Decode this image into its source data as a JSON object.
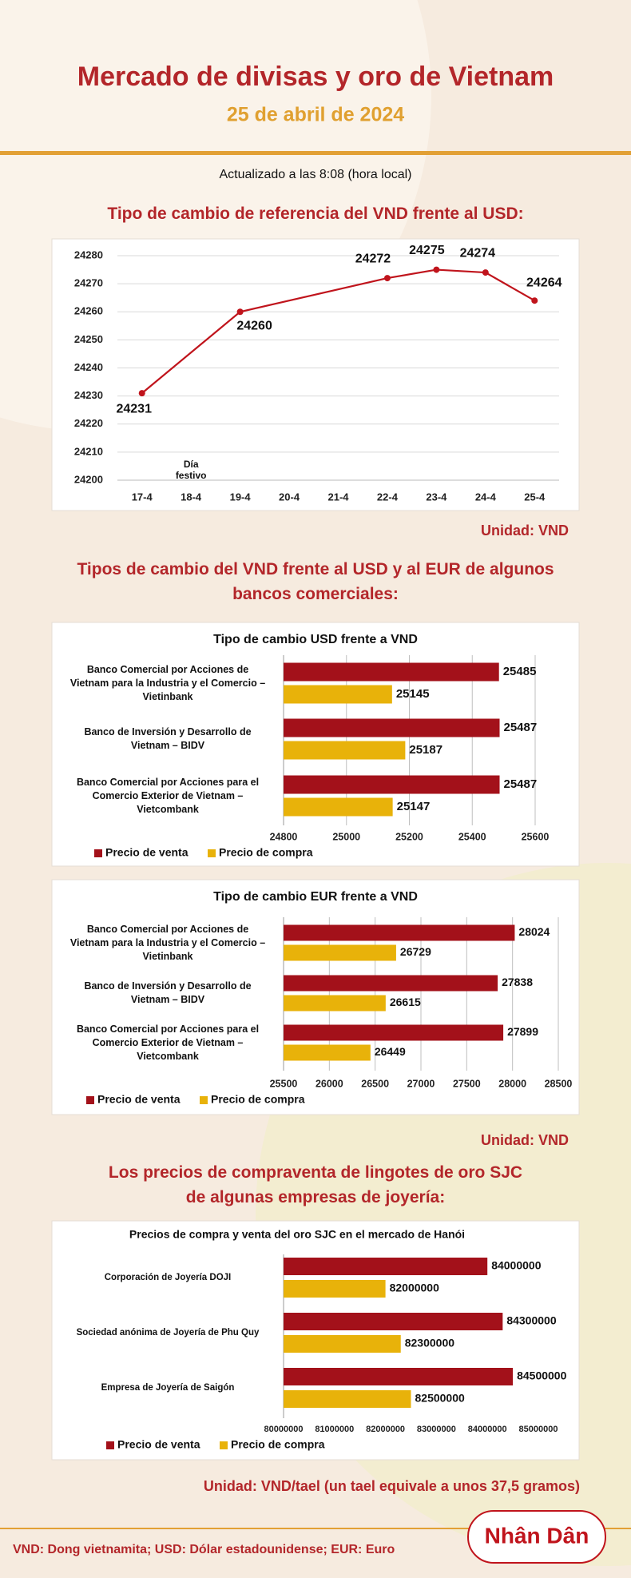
{
  "header": {
    "title": "Mercado de divisas y oro de Vietnam",
    "date": "25 de abril de 2024",
    "updated": "Actualizado a las 8:08 (hora local)"
  },
  "sections": [
    {
      "title": "Tipo de cambio de referencia del VND frente al USD:",
      "unit": "Unidad: VND"
    },
    {
      "title": "Tipos de cambio del VND frente al USD y al EUR de algunos bancos comerciales:",
      "unit": "Unidad: VND"
    },
    {
      "title": "Los precios de compraventa de lingotes de oro SJC de algunas empresas de joyería:",
      "unit": "Unidad: VND/tael (un tael equivale a unos 37,5 gramos)"
    }
  ],
  "footer": "VND: Dong vietnamita; USD: Dólar estadounidense; EUR: Euro",
  "logo": "Nhân Dân",
  "chart_data": [
    {
      "type": "line",
      "categories": [
        "17-4",
        "18-4",
        "19-4",
        "20-4",
        "21-4",
        "22-4",
        "23-4",
        "24-4",
        "25-4"
      ],
      "x": [
        "17-4",
        "19-4",
        "22-4",
        "23-4",
        "24-4",
        "25-4"
      ],
      "values": [
        24231,
        24260,
        24272,
        24275,
        24274,
        24264
      ],
      "color": "#c0141c",
      "ylim": [
        24200,
        24280
      ],
      "yticks": [
        24200,
        24210,
        24220,
        24230,
        24240,
        24250,
        24260,
        24270,
        24280
      ],
      "grid": true,
      "annotations": [
        {
          "text": "Día festivo",
          "x": "18-4"
        }
      ]
    },
    {
      "type": "bar",
      "orientation": "horizontal",
      "title": "Tipo de cambio USD frente a VND",
      "categories": [
        "Banco Comercial por Acciones de Vietnam para la Industria y el Comercio – Vietinbank",
        "Banco de Inversión y Desarrollo de Vietnam – BIDV",
        "Banco Comercial por Acciones para el Comercio Exterior de Vietnam – Vietcombank"
      ],
      "series": [
        {
          "name": "Precio de venta",
          "color": "#a3111a",
          "values": [
            25485,
            25487,
            25487
          ]
        },
        {
          "name": "Precio de compra",
          "color": "#e8b20a",
          "values": [
            25145,
            25187,
            25147
          ]
        }
      ],
      "xlim": [
        24800,
        25600
      ],
      "xticks": [
        24800,
        25000,
        25200,
        25400,
        25600
      ],
      "grid": true,
      "legend": "bottom-left"
    },
    {
      "type": "bar",
      "orientation": "horizontal",
      "title": "Tipo de cambio EUR frente a VND",
      "categories": [
        "Banco Comercial por Acciones de Vietnam para la Industria y el Comercio – Vietinbank",
        "Banco de Inversión y Desarrollo de Vietnam – BIDV",
        "Banco Comercial por Acciones para el Comercio Exterior de Vietnam – Vietcombank"
      ],
      "series": [
        {
          "name": "Precio de venta",
          "color": "#a3111a",
          "values": [
            28024,
            27838,
            27899
          ]
        },
        {
          "name": "Precio de compra",
          "color": "#e8b20a",
          "values": [
            26729,
            26615,
            26449
          ]
        }
      ],
      "xlim": [
        25500,
        28500
      ],
      "xticks": [
        25500,
        26000,
        26500,
        27000,
        27500,
        28000,
        28500
      ],
      "grid": true,
      "legend": "bottom-left"
    },
    {
      "type": "bar",
      "orientation": "horizontal",
      "title": "Precios de compra y venta del oro SJC en el mercado de Hanói",
      "categories": [
        "Corporación de Joyería DOJI",
        "Sociedad anónima de Joyería de Phu Quy",
        "Empresa de Joyería de Saigón"
      ],
      "series": [
        {
          "name": "Precio de venta",
          "color": "#a3111a",
          "values": [
            84000000,
            84300000,
            84500000
          ]
        },
        {
          "name": "Precio de compra",
          "color": "#e8b20a",
          "values": [
            82000000,
            82300000,
            82500000
          ]
        }
      ],
      "xlim": [
        80000000,
        85000000
      ],
      "xticks": [
        80000000,
        81000000,
        82000000,
        83000000,
        84000000,
        85000000
      ],
      "grid": false,
      "legend": "bottom-left"
    }
  ]
}
